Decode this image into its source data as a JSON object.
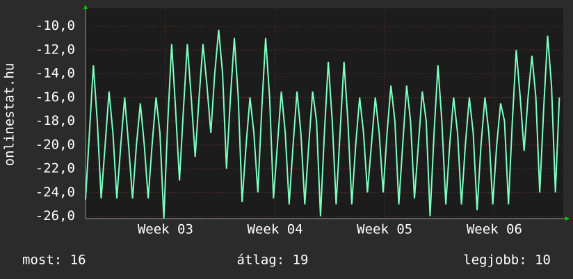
{
  "chart_data": {
    "type": "line",
    "y_label": "onlinestat.hu",
    "ylim": [
      -26.2,
      -8.5
    ],
    "yticks": [
      {
        "value": -10,
        "label": "-10,0"
      },
      {
        "value": -12,
        "label": "-12,0"
      },
      {
        "value": -14,
        "label": "-14,0"
      },
      {
        "value": -16,
        "label": "-16,0"
      },
      {
        "value": -18,
        "label": "-18,0"
      },
      {
        "value": -20,
        "label": "-20,0"
      },
      {
        "value": -22,
        "label": "-22,0"
      },
      {
        "value": -24,
        "label": "-24,0"
      },
      {
        "value": -26,
        "label": "-26,0"
      }
    ],
    "xlim": [
      0,
      30.5
    ],
    "xticks": [
      {
        "value": 5.1,
        "label": "Week 03"
      },
      {
        "value": 12.1,
        "label": "Week 04"
      },
      {
        "value": 19.1,
        "label": "Week 05"
      },
      {
        "value": 26.1,
        "label": "Week 06"
      }
    ],
    "grid": true,
    "x": [
      0,
      0.25,
      0.5,
      0.75,
      1,
      1.25,
      1.5,
      1.75,
      2,
      2.25,
      2.5,
      2.75,
      3,
      3.25,
      3.5,
      3.75,
      4,
      4.25,
      4.5,
      4.75,
      5,
      5.25,
      5.5,
      5.75,
      6,
      6.25,
      6.5,
      6.75,
      7,
      7.25,
      7.5,
      7.75,
      8,
      8.25,
      8.5,
      8.75,
      9,
      9.25,
      9.5,
      9.75,
      10,
      10.25,
      10.5,
      10.75,
      11,
      11.25,
      11.5,
      11.75,
      12,
      12.25,
      12.5,
      12.75,
      13,
      13.25,
      13.5,
      13.75,
      14,
      14.25,
      14.5,
      14.75,
      15,
      15.25,
      15.5,
      15.75,
      16,
      16.25,
      16.5,
      16.75,
      17,
      17.25,
      17.5,
      17.75,
      18,
      18.25,
      18.5,
      18.75,
      19,
      19.25,
      19.5,
      19.75,
      20,
      20.25,
      20.5,
      20.75,
      21,
      21.25,
      21.5,
      21.75,
      22,
      22.25,
      22.5,
      22.75,
      23,
      23.25,
      23.5,
      23.75,
      24,
      24.25,
      24.5,
      24.75,
      25,
      25.25,
      25.5,
      25.75,
      26,
      26.25,
      26.5,
      26.75,
      27,
      27.25,
      27.5,
      27.75,
      28,
      28.25,
      28.5,
      28.75,
      29,
      29.25,
      29.5,
      29.75,
      30,
      30.25
    ],
    "series": [
      {
        "color": "#7dffc0",
        "values": [
          -24.6,
          -19,
          -13.3,
          -18,
          -24.5,
          -20,
          -15.5,
          -19,
          -24.5,
          -20,
          -16,
          -20,
          -24.5,
          -20,
          -16.5,
          -20,
          -24.5,
          -20,
          -16,
          -19,
          -26.2,
          -18,
          -11.5,
          -17,
          -23,
          -17,
          -11.5,
          -16,
          -21,
          -16,
          -11.5,
          -15,
          -19,
          -14,
          -10.3,
          -14,
          -22,
          -16,
          -11,
          -16,
          -24.8,
          -20,
          -16,
          -19,
          -24,
          -17,
          -11,
          -16,
          -24.5,
          -20,
          -15.5,
          -19,
          -25,
          -20,
          -15.5,
          -19,
          -25,
          -20,
          -15.5,
          -18,
          -26,
          -19,
          -13,
          -18,
          -25,
          -19,
          -13,
          -18,
          -25,
          -20,
          -16,
          -19,
          -24,
          -20,
          -16,
          -19,
          -24,
          -19,
          -15,
          -18,
          -25,
          -20,
          -15,
          -18,
          -24.5,
          -20,
          -15.5,
          -18,
          -26,
          -19,
          -13.3,
          -18,
          -25,
          -20,
          -16,
          -19,
          -25,
          -20,
          -16,
          -19,
          -25.5,
          -20,
          -16,
          -19,
          -25,
          -20,
          -16.5,
          -18,
          -25,
          -18,
          -12,
          -16,
          -20.5,
          -16,
          -12.5,
          -16,
          -24,
          -17,
          -10.8,
          -15,
          -24,
          -16
        ]
      }
    ],
    "stats": [
      "most: 16",
      "átlag: 19",
      "legjobb: 10"
    ]
  }
}
